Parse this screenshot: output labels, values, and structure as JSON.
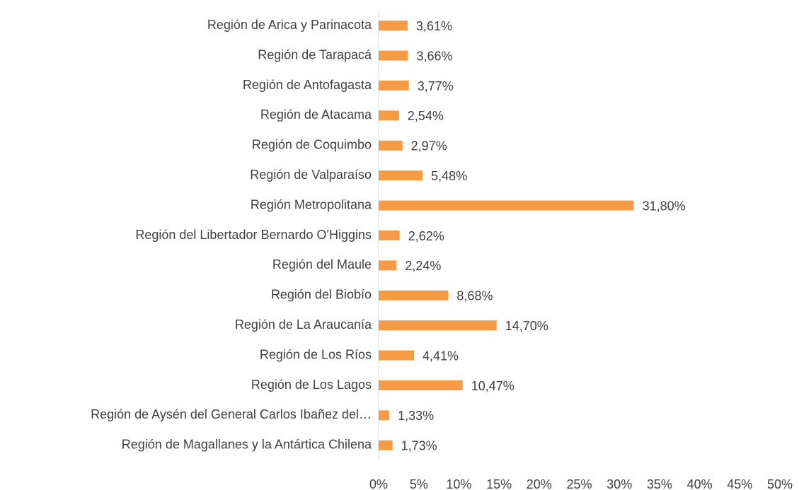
{
  "chart_data": {
    "type": "bar",
    "orientation": "horizontal",
    "categories": [
      "Región de Arica y Parinacota",
      "Región de Tarapacá",
      "Región de Antofagasta",
      "Región de Atacama",
      "Región de Coquimbo",
      "Región de Valparaíso",
      "Región Metropolitana",
      "Región del Libertador Bernardo O'Higgins",
      "Región del Maule",
      "Región del Biobío",
      "Región de La Araucanía",
      "Región de Los Ríos",
      "Región de Los Lagos",
      "Región de Aysén del General Carlos Ibañez del…",
      "Región de Magallanes y la Antártica Chilena"
    ],
    "values": [
      3.61,
      3.66,
      3.77,
      2.54,
      2.97,
      5.48,
      31.8,
      2.62,
      2.24,
      8.68,
      14.7,
      4.41,
      10.47,
      1.33,
      1.73
    ],
    "value_labels": [
      "3,61%",
      "3,66%",
      "3,77%",
      "2,54%",
      "2,97%",
      "5,48%",
      "31,80%",
      "2,62%",
      "2,24%",
      "8,68%",
      "14,70%",
      "4,41%",
      "10,47%",
      "1,33%",
      "1,73%"
    ],
    "color": "#f59a45",
    "xlim": [
      0,
      50
    ],
    "xticks": [
      {
        "value": 0,
        "label": "0%"
      },
      {
        "value": 5,
        "label": "5%"
      },
      {
        "value": 10,
        "label": "10%"
      },
      {
        "value": 15,
        "label": "15%"
      },
      {
        "value": 20,
        "label": "20%"
      },
      {
        "value": 25,
        "label": "25%"
      },
      {
        "value": 30,
        "label": "30%"
      },
      {
        "value": 35,
        "label": "35%"
      },
      {
        "value": 40,
        "label": "40%"
      },
      {
        "value": 45,
        "label": "45%"
      },
      {
        "value": 50,
        "label": "50%"
      }
    ],
    "grid": false
  }
}
